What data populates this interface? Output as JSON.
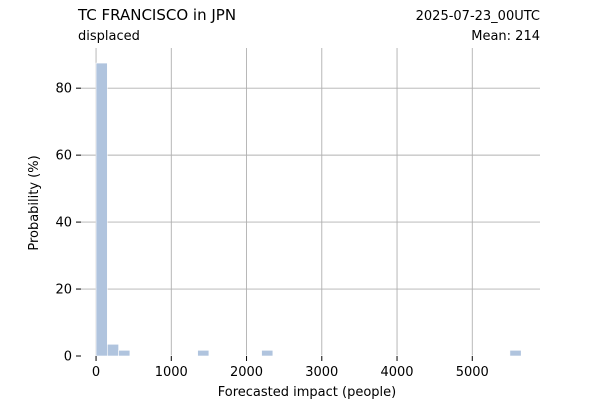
{
  "header": {
    "title": "TC FRANCISCO in JPN",
    "subtitle": "displaced",
    "timestamp": "2025-07-23_00UTC",
    "mean_label": "Mean: 214",
    "timestamp_color": "#ff0000"
  },
  "chart_data": {
    "type": "bar",
    "xlabel": "Forecasted impact (people)",
    "ylabel": "Probability (%)",
    "xlim": [
      -200,
      5900
    ],
    "ylim": [
      0,
      92
    ],
    "xticks": [
      0,
      1000,
      2000,
      3000,
      4000,
      5000
    ],
    "yticks": [
      0,
      20,
      40,
      60,
      80
    ],
    "bin_width": 150,
    "grid": true,
    "bar_color": "#b0c4de",
    "bins": [
      {
        "x": 0,
        "value": 87.5
      },
      {
        "x": 150,
        "value": 3.5
      },
      {
        "x": 300,
        "value": 1.7
      },
      {
        "x": 450,
        "value": 0.1
      },
      {
        "x": 600,
        "value": 0.1
      },
      {
        "x": 750,
        "value": 0.1
      },
      {
        "x": 900,
        "value": 0.1
      },
      {
        "x": 1050,
        "value": 0.1
      },
      {
        "x": 1200,
        "value": 0.1
      },
      {
        "x": 1350,
        "value": 1.7
      },
      {
        "x": 1500,
        "value": 0.1
      },
      {
        "x": 1650,
        "value": 0.1
      },
      {
        "x": 1800,
        "value": 0.1
      },
      {
        "x": 1950,
        "value": 0.1
      },
      {
        "x": 2100,
        "value": 0.1
      },
      {
        "x": 2200,
        "value": 1.7
      },
      {
        "x": 2350,
        "value": 0.1
      },
      {
        "x": 2500,
        "value": 0.1
      },
      {
        "x": 2650,
        "value": 0.1
      },
      {
        "x": 2800,
        "value": 0.1
      },
      {
        "x": 2950,
        "value": 0.1
      },
      {
        "x": 3100,
        "value": 0.1
      },
      {
        "x": 3250,
        "value": 0.1
      },
      {
        "x": 3400,
        "value": 0.1
      },
      {
        "x": 3550,
        "value": 0.1
      },
      {
        "x": 3700,
        "value": 0.1
      },
      {
        "x": 3850,
        "value": 0.1
      },
      {
        "x": 4000,
        "value": 0.1
      },
      {
        "x": 4150,
        "value": 0.1
      },
      {
        "x": 4300,
        "value": 0.1
      },
      {
        "x": 4450,
        "value": 0.1
      },
      {
        "x": 4600,
        "value": 0.1
      },
      {
        "x": 4750,
        "value": 0.1
      },
      {
        "x": 4900,
        "value": 0.1
      },
      {
        "x": 5050,
        "value": 0.1
      },
      {
        "x": 5200,
        "value": 0.1
      },
      {
        "x": 5350,
        "value": 0.1
      },
      {
        "x": 5500,
        "value": 1.7
      }
    ]
  }
}
